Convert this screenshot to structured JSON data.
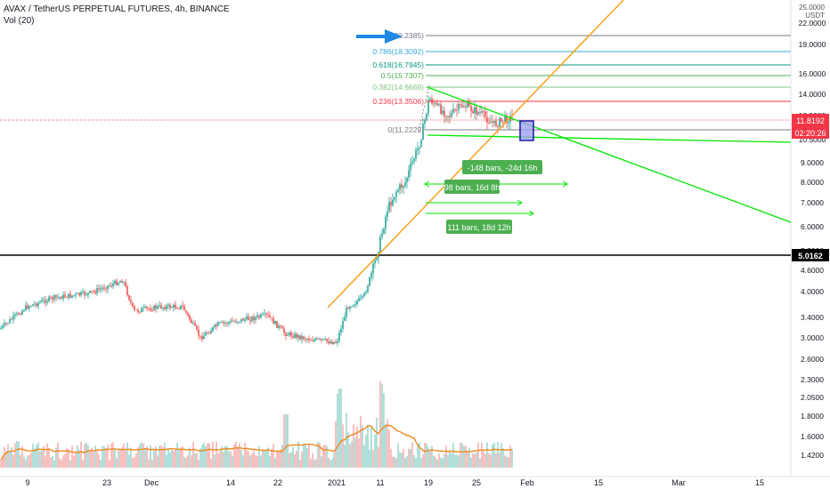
{
  "header": {
    "symbol_line": "AVAX / TetherUS PERPETUAL FUTURES, 4h, BINANCE",
    "indicator": "Vol (20)"
  },
  "price_axis": {
    "currency_top": "25.0000",
    "currency": "USDT",
    "ticks": [
      "22.0000",
      "19.0000",
      "16.0000",
      "14.0000",
      "12.0000",
      "10.5000",
      "9.0000",
      "8.0000",
      "7.0000",
      "6.0000",
      "5.2000",
      "4.6000",
      "4.0000",
      "3.4000",
      "3.0000",
      "2.6000",
      "2.3000",
      "2.0500",
      "1.8000",
      "1.6000",
      "1.4200"
    ],
    "current_price": "11.8192",
    "countdown": "02:20:26",
    "level_label": "5.0162"
  },
  "time_axis": {
    "ticks": [
      "9",
      "23",
      "Dec",
      "14",
      "22",
      "2021",
      "11",
      "19",
      "25",
      "Feb",
      "15",
      "Mar",
      "15"
    ]
  },
  "fib_levels": [
    {
      "ratio": "1",
      "value": "20.2385",
      "color": "#787b86",
      "label": "(20.2385)"
    },
    {
      "ratio": "0.786",
      "value": "18.3092",
      "color": "#3aa8d8",
      "label": "0.786(18.3092)"
    },
    {
      "ratio": "0.618",
      "value": "16.7945",
      "color": "#089981",
      "label": "0.618(16.7945)"
    },
    {
      "ratio": "0.5",
      "value": "15.7307",
      "color": "#4caf50",
      "label": "0.5(15.7307)"
    },
    {
      "ratio": "0.382",
      "value": "14.6669",
      "color": "#81c784",
      "label": "0.382(14.6669)"
    },
    {
      "ratio": "0.236",
      "value": "13.3506",
      "color": "#f23645",
      "label": "0.236(13.3506)"
    },
    {
      "ratio": "0",
      "value": "11.2229",
      "color": "#787b86",
      "label": "0(11.2229)"
    }
  ],
  "range_labels": [
    {
      "text": "-148 bars, -24d 16h"
    },
    {
      "text": "98 bars, 16d 8h"
    },
    {
      "text": "111 bars, 18d 12h"
    }
  ],
  "colors": {
    "up": "#26a69a",
    "down": "#ef5350",
    "trend_orange": "#f7a21b",
    "trend_green": "#00e600",
    "arrow_blue": "#1e88e5",
    "box_fill": "#9c9cf0",
    "box_edge": "#1a1aa8",
    "range_label": "#4caf50",
    "price_badge": "#f23645"
  }
}
